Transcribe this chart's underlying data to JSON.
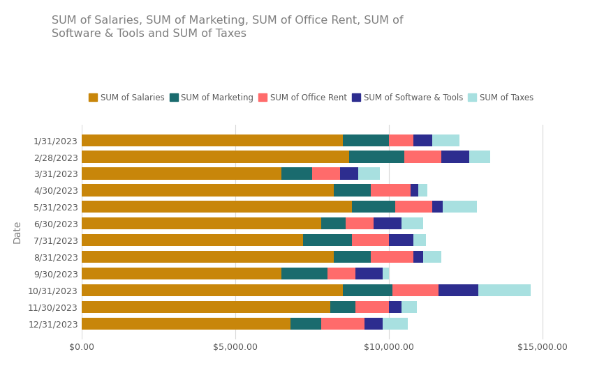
{
  "title": "SUM of Salaries, SUM of Marketing, SUM of Office Rent, SUM of\nSoftware & Tools and SUM of Taxes",
  "dates": [
    "1/31/2023",
    "2/28/2023",
    "3/31/2023",
    "4/30/2023",
    "5/31/2023",
    "6/30/2023",
    "7/31/2023",
    "8/31/2023",
    "9/30/2023",
    "10/31/2023",
    "11/30/2023",
    "12/31/2023"
  ],
  "salaries": [
    8500,
    8700,
    6500,
    8200,
    8800,
    7800,
    7200,
    8200,
    6500,
    8500,
    8100,
    6800
  ],
  "marketing": [
    1500,
    1800,
    1000,
    1200,
    1400,
    800,
    1600,
    1200,
    1500,
    1600,
    800,
    1000
  ],
  "office_rent": [
    800,
    1200,
    900,
    1300,
    1200,
    900,
    1200,
    1400,
    900,
    1500,
    1100,
    1400
  ],
  "software": [
    600,
    900,
    600,
    250,
    350,
    900,
    800,
    300,
    900,
    1300,
    400,
    600
  ],
  "taxes": [
    900,
    700,
    700,
    300,
    1100,
    700,
    400,
    600,
    200,
    1700,
    500,
    800
  ],
  "colors": {
    "salaries": "#C8860A",
    "marketing": "#1A6B6E",
    "office_rent": "#FF6B6B",
    "software": "#2D2D8F",
    "taxes": "#A8E0E0"
  },
  "legend_labels": [
    "SUM of Salaries",
    "SUM of Marketing",
    "SUM of Office Rent",
    "SUM of Software & Tools",
    "SUM of Taxes"
  ],
  "ylabel": "Date",
  "xlim": [
    0,
    16500
  ],
  "background_color": "#FFFFFF",
  "plot_bg_color": "#FFFFFF",
  "title_color": "#7F7F7F",
  "axis_label_color": "#7F7F7F",
  "tick_label_color": "#595959",
  "grid_color": "#D9D9D9"
}
